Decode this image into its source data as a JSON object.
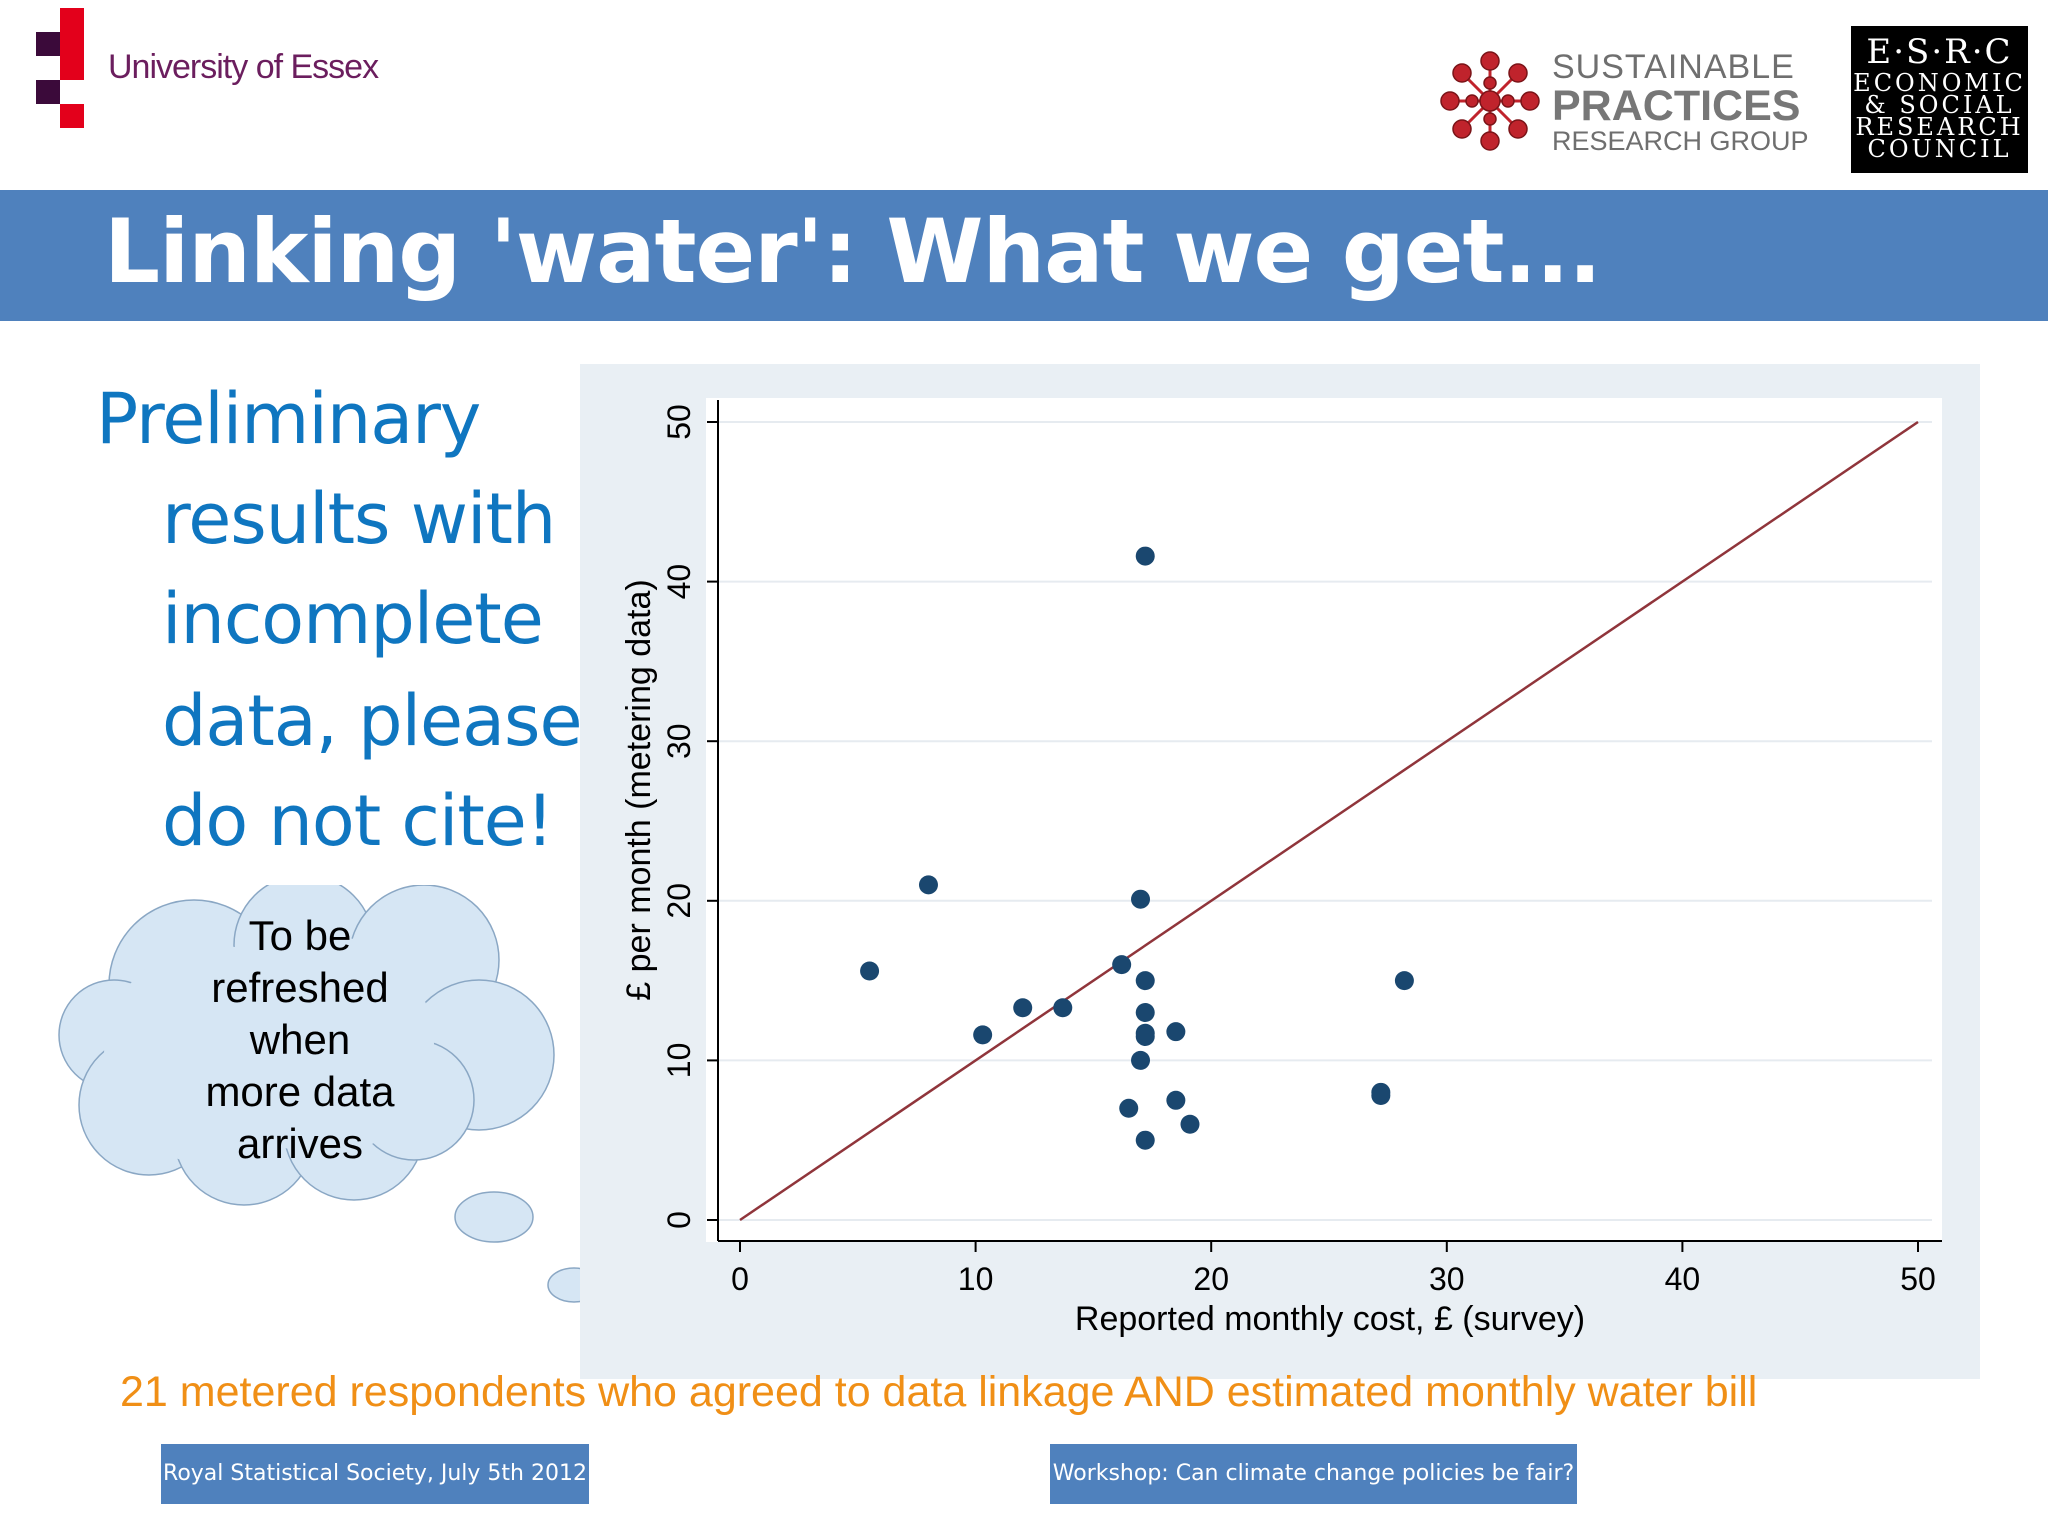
{
  "header": {
    "university_name": "University of Essex",
    "sprg": {
      "line1": "SUSTAINABLE",
      "line2": "PRACTICES",
      "line3": "RESEARCH GROUP"
    },
    "esrc": {
      "line1": "E·S·R·C",
      "line2": "ECONOMIC",
      "line3": "& SOCIAL",
      "line4": "RESEARCH",
      "line5": "COUNCIL"
    }
  },
  "title": "Linking 'water': What we get...",
  "notice": {
    "lines": [
      "Preliminary",
      "results with",
      "incomplete",
      "data, please",
      "do not cite!"
    ]
  },
  "cloud": {
    "lines": [
      "To be",
      "refreshed",
      "when",
      "more data",
      "arrives"
    ]
  },
  "caption": "21 metered respondents who agreed to data linkage AND estimated monthly water bill",
  "footer": {
    "left": "Royal Statistical Society, July 5th 2012",
    "right": "Workshop: Can climate change policies be fair?"
  },
  "colors": {
    "title_band": "#4f81bd",
    "notice_text": "#0f76c0",
    "caption_text": "#f08f16",
    "point": "#1a476f",
    "reference_line": "#90353b",
    "plot_bg": "#ffffff",
    "chart_bg": "#e9eff4"
  },
  "chart_data": {
    "type": "scatter",
    "xlabel": "Reported monthly cost, £ (survey)",
    "ylabel": "£ per month (metering data)",
    "xlim": [
      0,
      50
    ],
    "ylim": [
      0,
      50
    ],
    "xticks": [
      0,
      10,
      20,
      30,
      40,
      50
    ],
    "yticks": [
      0,
      10,
      20,
      30,
      40,
      50
    ],
    "grid": "horizontal",
    "reference_line": {
      "from": [
        0,
        0
      ],
      "to": [
        50,
        50
      ]
    },
    "points": [
      {
        "x": 5.5,
        "y": 15.6
      },
      {
        "x": 8,
        "y": 21
      },
      {
        "x": 10.3,
        "y": 11.6
      },
      {
        "x": 12,
        "y": 13.3
      },
      {
        "x": 13.7,
        "y": 13.3
      },
      {
        "x": 16.2,
        "y": 16
      },
      {
        "x": 16.5,
        "y": 7
      },
      {
        "x": 17,
        "y": 20.1
      },
      {
        "x": 17,
        "y": 10
      },
      {
        "x": 17.2,
        "y": 41.6
      },
      {
        "x": 17.2,
        "y": 15
      },
      {
        "x": 17.2,
        "y": 13
      },
      {
        "x": 17.2,
        "y": 11.7
      },
      {
        "x": 17.2,
        "y": 5
      },
      {
        "x": 18.5,
        "y": 11.8
      },
      {
        "x": 18.5,
        "y": 7.5
      },
      {
        "x": 19.1,
        "y": 6
      },
      {
        "x": 27.2,
        "y": 8
      },
      {
        "x": 27.2,
        "y": 7.8
      },
      {
        "x": 28.2,
        "y": 15
      },
      {
        "x": 17.2,
        "y": 11.5
      }
    ]
  }
}
